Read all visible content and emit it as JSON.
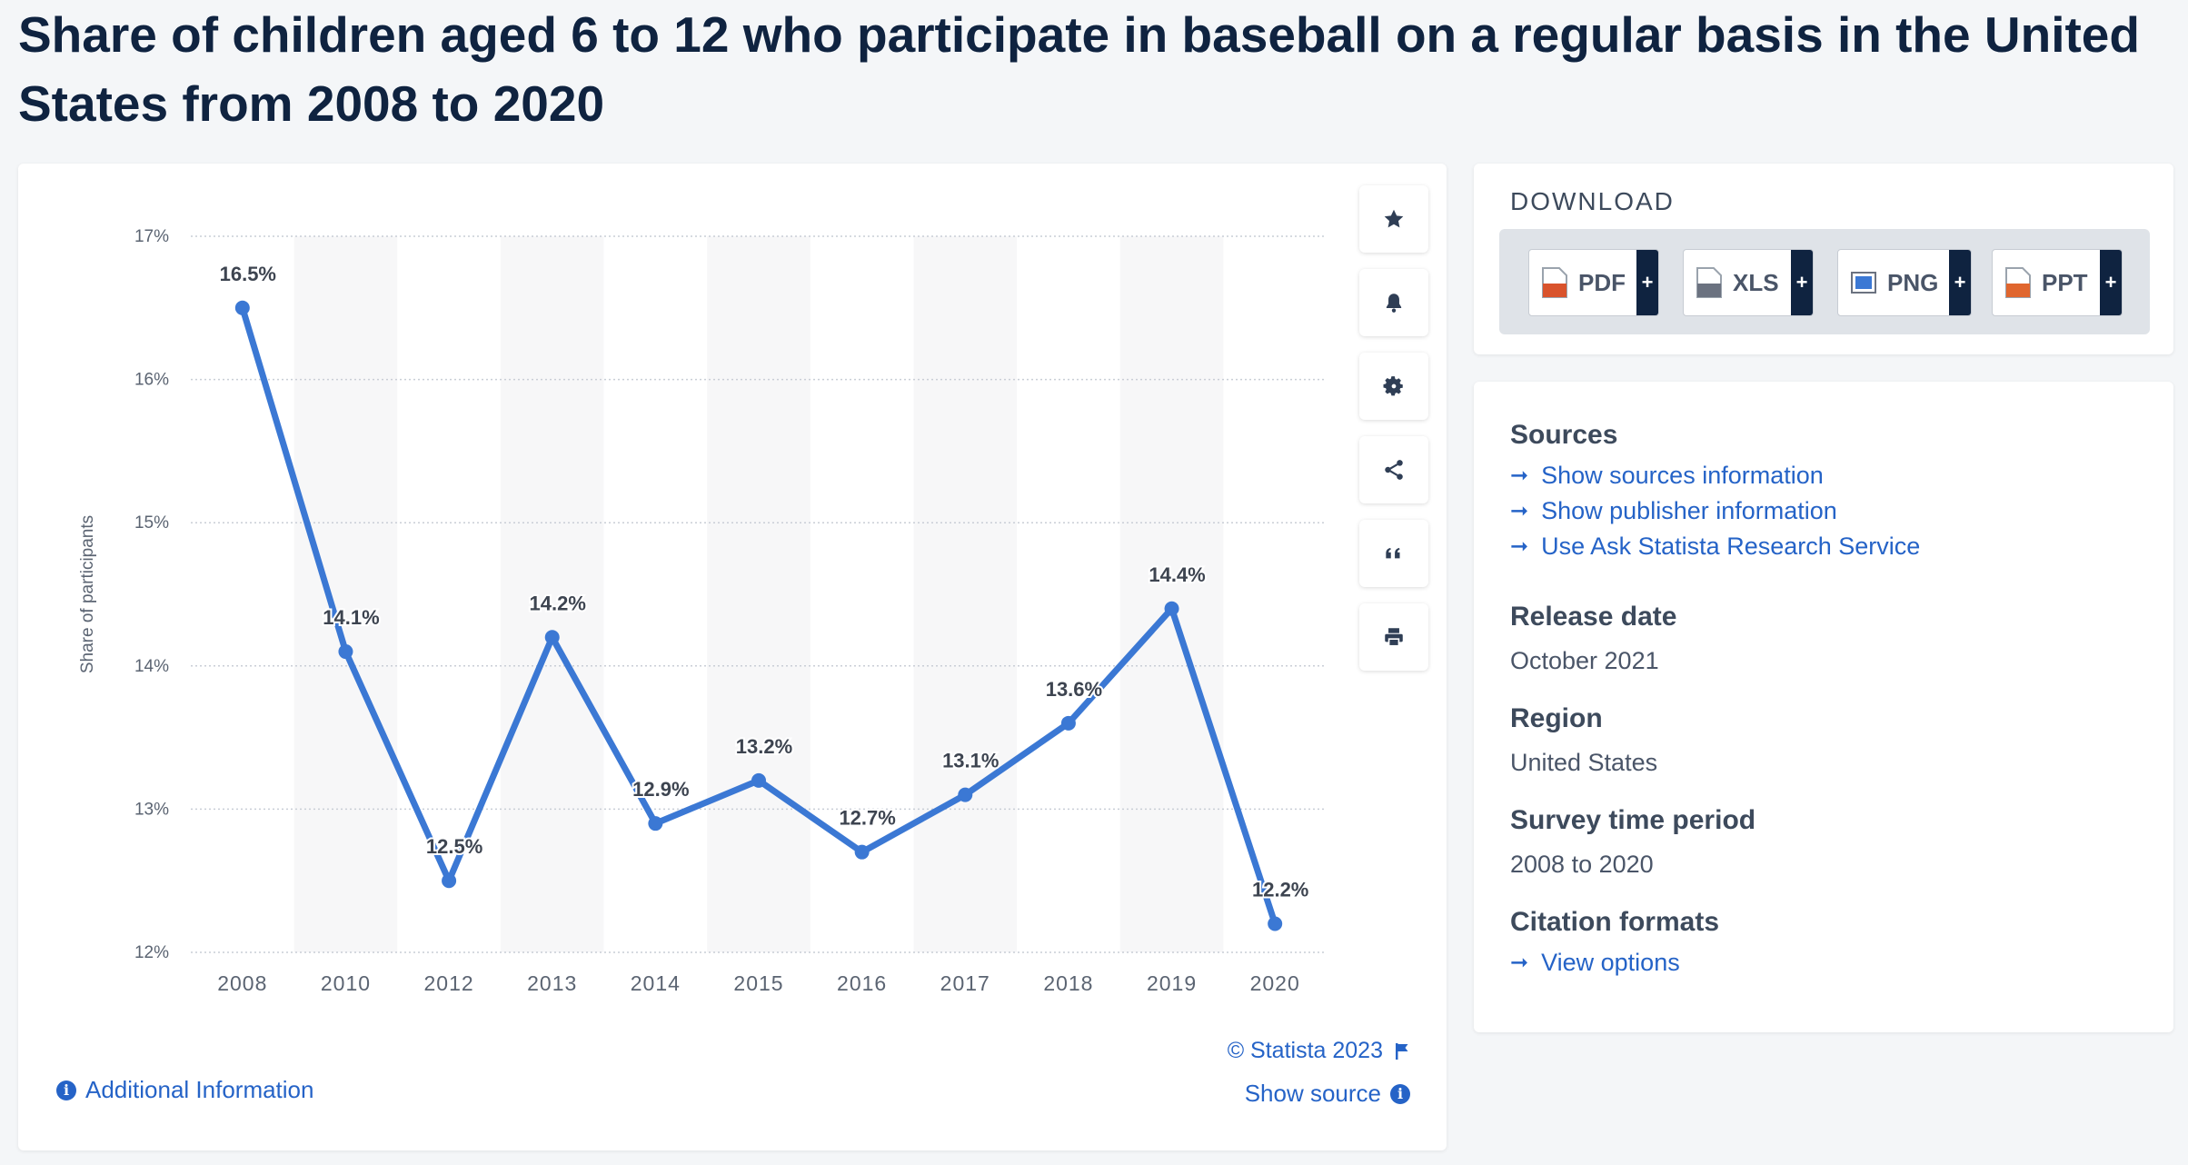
{
  "page": {
    "title": "Share of children aged 6 to 12 who participate in baseball on a regular basis in the United States from 2008 to 2020"
  },
  "chart_data": {
    "type": "line",
    "title": "Share of children aged 6 to 12 who participate in baseball on a regular basis in the United States from 2008 to 2020",
    "xlabel": "",
    "ylabel": "Share of participants",
    "categories": [
      "2008",
      "2010",
      "2012",
      "2013",
      "2014",
      "2015",
      "2016",
      "2017",
      "2018",
      "2019",
      "2020"
    ],
    "values": [
      16.5,
      14.1,
      12.5,
      14.2,
      12.9,
      13.2,
      12.7,
      13.1,
      13.6,
      14.4,
      12.2
    ],
    "data_labels": [
      "16.5%",
      "14.1%",
      "12.5%",
      "14.2%",
      "12.9%",
      "13.2%",
      "12.7%",
      "13.1%",
      "13.6%",
      "14.4%",
      "12.2%"
    ],
    "yticks": [
      12,
      13,
      14,
      15,
      16,
      17
    ],
    "ytick_labels": [
      "12%",
      "13%",
      "14%",
      "15%",
      "16%",
      "17%"
    ],
    "ylim": [
      12,
      17
    ],
    "grid": true,
    "line_color": "#3b78d4"
  },
  "toolbar": {
    "icons": [
      "star-icon",
      "bell-icon",
      "gear-icon",
      "share-icon",
      "quote-icon",
      "print-icon"
    ]
  },
  "chart_footer": {
    "copyright": "© Statista 2023",
    "show_source": "Show source",
    "additional_info": "Additional Information"
  },
  "download": {
    "title": "DOWNLOAD",
    "buttons": [
      {
        "label": "PDF",
        "plus": "+"
      },
      {
        "label": "XLS",
        "plus": "+"
      },
      {
        "label": "PNG",
        "plus": "+"
      },
      {
        "label": "PPT",
        "plus": "+"
      }
    ]
  },
  "info": {
    "sources_heading": "Sources",
    "links": [
      "Show sources information",
      "Show publisher information",
      "Use Ask Statista Research Service"
    ],
    "release_heading": "Release date",
    "release_value": "October 2021",
    "region_heading": "Region",
    "region_value": "United States",
    "survey_heading": "Survey time period",
    "survey_value": "2008 to 2020",
    "citation_heading": "Citation formats",
    "citation_link": "View options"
  }
}
